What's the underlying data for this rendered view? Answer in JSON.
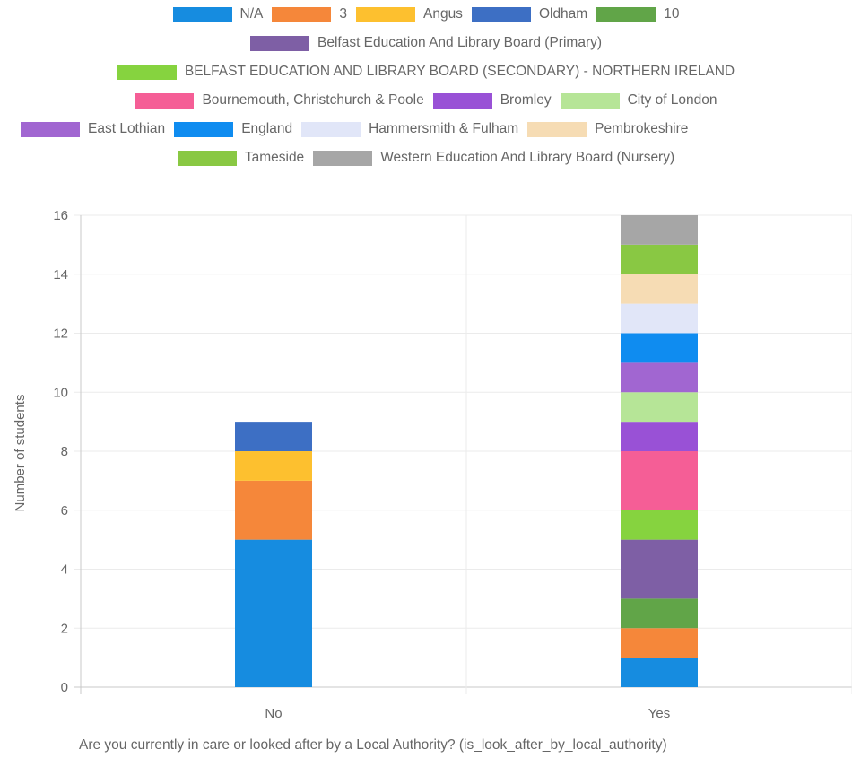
{
  "chart_data": {
    "type": "bar",
    "stacked": true,
    "categories": [
      "No",
      "Yes"
    ],
    "series": [
      {
        "name": "N/A",
        "color": "#168ce0",
        "values": [
          5,
          1
        ]
      },
      {
        "name": "3",
        "color": "#f5873a",
        "values": [
          2,
          1
        ]
      },
      {
        "name": "Angus",
        "color": "#fdc02f",
        "values": [
          1,
          0
        ]
      },
      {
        "name": "Oldham",
        "color": "#3d6fc4",
        "values": [
          1,
          0
        ]
      },
      {
        "name": "10",
        "color": "#61a548",
        "values": [
          0,
          1
        ]
      },
      {
        "name": "Belfast Education And Library Board (Primary)",
        "color": "#7e5fa5",
        "values": [
          0,
          2
        ]
      },
      {
        "name": "BELFAST EDUCATION AND LIBRARY BOARD (SECONDARY) - NORTHERN IRELAND",
        "color": "#86d33f",
        "values": [
          0,
          1
        ]
      },
      {
        "name": "Bournemouth, Christchurch & Poole",
        "color": "#f55e96",
        "values": [
          0,
          2
        ]
      },
      {
        "name": "Bromley",
        "color": "#9951d6",
        "values": [
          0,
          1
        ]
      },
      {
        "name": "City of London",
        "color": "#b6e597",
        "values": [
          0,
          1
        ]
      },
      {
        "name": "East Lothian",
        "color": "#a166d1",
        "values": [
          0,
          1
        ]
      },
      {
        "name": "England",
        "color": "#0f8cf0",
        "values": [
          0,
          1
        ]
      },
      {
        "name": "Hammersmith & Fulham",
        "color": "#e1e6f8",
        "values": [
          0,
          1
        ]
      },
      {
        "name": "Pembrokeshire",
        "color": "#f6dcb4",
        "values": [
          0,
          1
        ]
      },
      {
        "name": "Tameside",
        "color": "#89c843",
        "values": [
          0,
          1
        ]
      },
      {
        "name": "Western Education And Library Board (Nursery)",
        "color": "#a6a6a6",
        "values": [
          0,
          1
        ]
      }
    ],
    "ylabel": "Number of students",
    "xlabel": "Are you currently in care or looked after by a Local Authority? (is_look_after_by_local_authority)",
    "ylim": [
      0,
      16
    ],
    "yticks": [
      0,
      2,
      4,
      6,
      8,
      10,
      12,
      14,
      16
    ],
    "grid": true,
    "legend_position": "top"
  }
}
